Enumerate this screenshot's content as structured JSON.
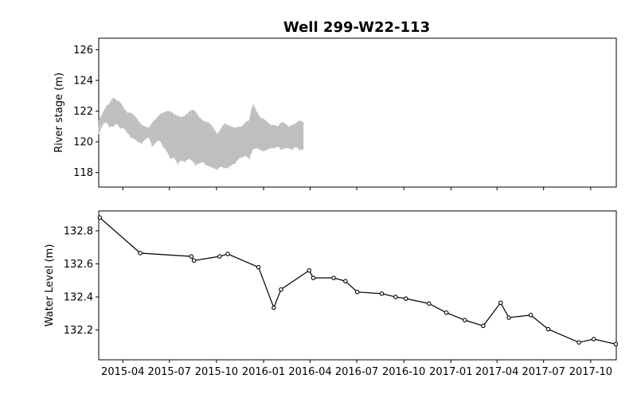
{
  "chart_data": {
    "title": "Well 299-W22-113",
    "x_ticks": [
      "2015-04",
      "2015-07",
      "2015-10",
      "2016-01",
      "2016-04",
      "2016-07",
      "2016-10",
      "2017-01",
      "2017-04",
      "2017-07",
      "2017-10"
    ],
    "x_tick_dates": [
      "2015-04-01",
      "2015-07-01",
      "2015-10-01",
      "2016-01-01",
      "2016-04-01",
      "2016-07-01",
      "2016-10-01",
      "2017-01-01",
      "2017-04-01",
      "2017-07-01",
      "2017-10-01"
    ],
    "xlim": [
      "2015-02-13",
      "2017-11-20"
    ],
    "panels": [
      {
        "type": "line",
        "ylabel": "River stage (m)",
        "ylim": [
          117.05,
          126.75
        ],
        "yticks": [
          118,
          120,
          122,
          124,
          126
        ],
        "line_color": "#bfbfbf",
        "series": [
          {
            "x": [
              "2015-02-13",
              "2015-02-20",
              "2015-02-27",
              "2015-03-06",
              "2015-03-13",
              "2015-03-20",
              "2015-03-27",
              "2015-04-03",
              "2015-04-10",
              "2015-04-17",
              "2015-04-24",
              "2015-05-01",
              "2015-05-08",
              "2015-05-15",
              "2015-05-22",
              "2015-05-29",
              "2015-06-05",
              "2015-06-12",
              "2015-06-19",
              "2015-06-26",
              "2015-07-03",
              "2015-07-10",
              "2015-07-17",
              "2015-07-24",
              "2015-07-31",
              "2015-08-07",
              "2015-08-14",
              "2015-08-21",
              "2015-08-28",
              "2015-09-04",
              "2015-09-11",
              "2015-09-18",
              "2015-09-25",
              "2015-10-02",
              "2015-10-09",
              "2015-10-16",
              "2015-10-23",
              "2015-10-30",
              "2015-11-06",
              "2015-11-13",
              "2015-11-20",
              "2015-11-27",
              "2015-12-04",
              "2015-12-11",
              "2015-12-18",
              "2015-12-25",
              "2016-01-01",
              "2016-01-08",
              "2016-01-15",
              "2016-01-22",
              "2016-01-29",
              "2016-02-05",
              "2016-02-12",
              "2016-02-19",
              "2016-02-26",
              "2016-03-04",
              "2016-03-11",
              "2016-03-18"
            ],
            "low": [
              120.5,
              121.1,
              121.3,
              121.0,
              121.0,
              121.2,
              120.9,
              120.9,
              120.6,
              120.3,
              120.2,
              120.0,
              119.9,
              120.2,
              120.3,
              119.7,
              120.0,
              120.1,
              119.7,
              119.4,
              118.9,
              119.0,
              118.6,
              118.8,
              118.7,
              118.9,
              118.8,
              118.5,
              118.6,
              118.7,
              118.5,
              118.4,
              118.3,
              118.2,
              118.4,
              118.3,
              118.3,
              118.5,
              118.6,
              118.9,
              119.0,
              119.1,
              118.9,
              119.5,
              119.6,
              119.5,
              119.4,
              119.5,
              119.6,
              119.6,
              119.7,
              119.5,
              119.6,
              119.6,
              119.5,
              119.7,
              119.5,
              119.5
            ],
            "high": [
              121.4,
              121.8,
              122.3,
              122.5,
              122.9,
              122.7,
              122.6,
              122.2,
              121.9,
              121.9,
              121.7,
              121.4,
              121.1,
              121.0,
              120.9,
              121.3,
              121.5,
              121.8,
              121.9,
              122.0,
              122.0,
              121.8,
              121.7,
              121.6,
              121.7,
              121.9,
              122.1,
              122.0,
              121.6,
              121.4,
              121.3,
              121.2,
              120.9,
              120.5,
              120.8,
              121.2,
              121.1,
              121.0,
              120.9,
              121.0,
              121.0,
              121.3,
              121.4,
              122.5,
              122.0,
              121.6,
              121.5,
              121.3,
              121.1,
              121.1,
              121.0,
              121.3,
              121.2,
              121.0,
              121.1,
              121.2,
              121.4,
              121.3
            ]
          }
        ]
      },
      {
        "type": "line",
        "ylabel": "Water Level (m)",
        "ylim": [
          132.02,
          132.92
        ],
        "yticks": [
          132.2,
          132.4,
          132.6,
          132.8
        ],
        "line_color": "#000000",
        "series": [
          {
            "x": [
              "2015-02-15",
              "2015-05-05",
              "2015-08-13",
              "2015-08-18",
              "2015-10-07",
              "2015-10-23",
              "2015-12-22",
              "2016-01-21",
              "2016-02-04",
              "2016-03-30",
              "2016-04-07",
              "2016-05-17",
              "2016-06-09",
              "2016-07-02",
              "2016-08-19",
              "2016-09-15",
              "2016-10-05",
              "2016-11-19",
              "2016-12-23",
              "2017-01-28",
              "2017-03-05",
              "2017-04-08",
              "2017-04-24",
              "2017-06-06",
              "2017-07-10",
              "2017-09-08",
              "2017-10-07",
              "2017-11-19"
            ],
            "y": [
              132.88,
              132.665,
              132.645,
              132.62,
              132.645,
              132.66,
              132.58,
              132.335,
              132.445,
              132.56,
              132.515,
              132.515,
              132.495,
              132.43,
              132.42,
              132.4,
              132.39,
              132.36,
              132.305,
              132.26,
              132.225,
              132.365,
              132.275,
              132.29,
              132.205,
              132.125,
              132.145,
              132.115
            ]
          }
        ]
      }
    ]
  }
}
